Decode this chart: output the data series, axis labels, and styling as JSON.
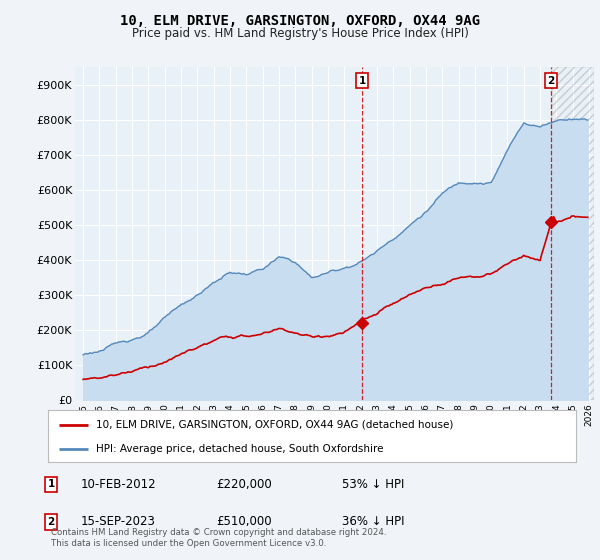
{
  "title": "10, ELM DRIVE, GARSINGTON, OXFORD, OX44 9AG",
  "subtitle": "Price paid vs. HM Land Registry's House Price Index (HPI)",
  "ylim": [
    0,
    950000
  ],
  "yticks": [
    0,
    100000,
    200000,
    300000,
    400000,
    500000,
    600000,
    700000,
    800000,
    900000
  ],
  "ytick_labels": [
    "£0",
    "£100K",
    "£200K",
    "£300K",
    "£400K",
    "£500K",
    "£600K",
    "£700K",
    "£800K",
    "£900K"
  ],
  "background_color": "#f0f4f8",
  "plot_bg_color": "#e8f0f8",
  "grid_color": "#ffffff",
  "hpi_color": "#5588bb",
  "hpi_fill_color": "#c8ddf0",
  "price_color": "#cc0000",
  "annotation1": {
    "label": "1",
    "date": "10-FEB-2012",
    "price": "£220,000",
    "pct": "53% ↓ HPI",
    "year": 2012.083,
    "val": 220000
  },
  "annotation2": {
    "label": "2",
    "date": "15-SEP-2023",
    "price": "£510,000",
    "pct": "36% ↓ HPI",
    "year": 2023.667,
    "val": 510000
  },
  "legend_line1": "10, ELM DRIVE, GARSINGTON, OXFORD, OX44 9AG (detached house)",
  "legend_line2": "HPI: Average price, detached house, South Oxfordshire",
  "footer": "Contains HM Land Registry data © Crown copyright and database right 2024.\nThis data is licensed under the Open Government Licence v3.0.",
  "hpi_key_years": [
    1995,
    1996,
    1997,
    1998,
    1999,
    2000,
    2001,
    2002,
    2003,
    2004,
    2005,
    2006,
    2007,
    2008,
    2009,
    2010,
    2011,
    2012,
    2013,
    2014,
    2015,
    2016,
    2017,
    2018,
    2019,
    2020,
    2021,
    2022,
    2023,
    2024,
    2025
  ],
  "hpi_key_vals": [
    130000,
    142000,
    158000,
    175000,
    195000,
    230000,
    265000,
    295000,
    330000,
    360000,
    355000,
    370000,
    400000,
    385000,
    340000,
    355000,
    370000,
    390000,
    420000,
    460000,
    500000,
    540000,
    590000,
    620000,
    630000,
    630000,
    720000,
    800000,
    790000,
    810000,
    820000
  ],
  "price_key_years": [
    1995,
    1996,
    1997,
    1998,
    1999,
    2000,
    2001,
    2002,
    2003,
    2004,
    2005,
    2006,
    2007,
    2008,
    2009,
    2010,
    2011,
    2012,
    2013,
    2014,
    2015,
    2016,
    2017,
    2018,
    2019,
    2020,
    2021,
    2022,
    2023,
    2023.8,
    2024,
    2025
  ],
  "price_key_vals": [
    60000,
    68000,
    78000,
    90000,
    105000,
    120000,
    140000,
    160000,
    175000,
    185000,
    185000,
    190000,
    205000,
    195000,
    180000,
    185000,
    195000,
    220000,
    240000,
    265000,
    285000,
    305000,
    320000,
    340000,
    345000,
    350000,
    375000,
    400000,
    380000,
    510000,
    490000,
    500000
  ],
  "xlim_left": 1994.5,
  "xlim_right": 2026.3
}
